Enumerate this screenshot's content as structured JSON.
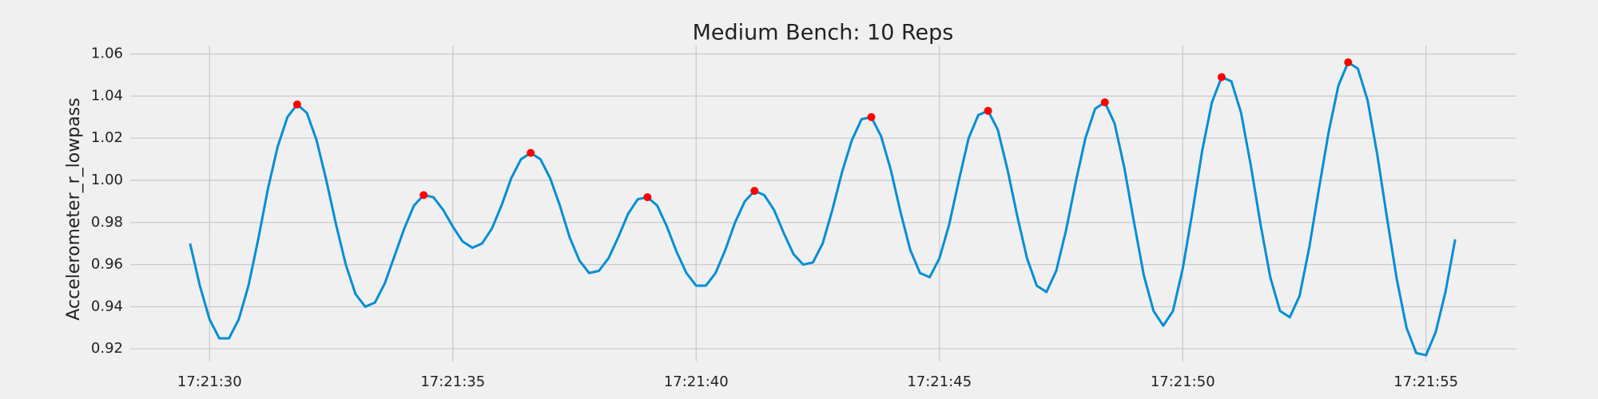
{
  "chart_data": {
    "type": "line",
    "title": "Medium Bench: 10 Reps",
    "ylabel": "Accelerometer_r_lowpass",
    "x": [
      29.6,
      29.8,
      30.0,
      30.2,
      30.4,
      30.6,
      30.8,
      31.0,
      31.2,
      31.4,
      31.6,
      31.8,
      32.0,
      32.2,
      32.4,
      32.6,
      32.8,
      33.0,
      33.2,
      33.4,
      33.6,
      33.8,
      34.0,
      34.2,
      34.4,
      34.6,
      34.8,
      35.0,
      35.2,
      35.4,
      35.6,
      35.8,
      36.0,
      36.2,
      36.4,
      36.6,
      36.8,
      37.0,
      37.2,
      37.4,
      37.6,
      37.8,
      38.0,
      38.2,
      38.4,
      38.6,
      38.8,
      39.0,
      39.2,
      39.4,
      39.6,
      39.8,
      40.0,
      40.2,
      40.4,
      40.6,
      40.8,
      41.0,
      41.2,
      41.4,
      41.6,
      41.8,
      42.0,
      42.2,
      42.4,
      42.6,
      42.8,
      43.0,
      43.2,
      43.4,
      43.6,
      43.8,
      44.0,
      44.2,
      44.4,
      44.6,
      44.8,
      45.0,
      45.2,
      45.4,
      45.6,
      45.8,
      46.0,
      46.2,
      46.4,
      46.6,
      46.8,
      47.0,
      47.2,
      47.4,
      47.6,
      47.8,
      48.0,
      48.2,
      48.4,
      48.6,
      48.8,
      49.0,
      49.2,
      49.4,
      49.6,
      49.8,
      50.0,
      50.2,
      50.4,
      50.6,
      50.8,
      51.0,
      51.2,
      51.4,
      51.6,
      51.8,
      52.0,
      52.2,
      52.4,
      52.6,
      52.8,
      53.0,
      53.2,
      53.4,
      53.6,
      53.8,
      54.0,
      54.2,
      54.4,
      54.6,
      54.8,
      55.0,
      55.2,
      55.4,
      55.6
    ],
    "series": [
      {
        "color": "#008fd5",
        "values": [
          0.97,
          0.95,
          0.934,
          0.925,
          0.925,
          0.934,
          0.95,
          0.972,
          0.996,
          1.016,
          1.03,
          1.036,
          1.032,
          1.019,
          1.0,
          0.979,
          0.96,
          0.946,
          0.94,
          0.942,
          0.951,
          0.964,
          0.977,
          0.988,
          0.993,
          0.992,
          0.986,
          0.978,
          0.971,
          0.968,
          0.97,
          0.977,
          0.988,
          1.001,
          1.01,
          1.013,
          1.01,
          1.001,
          0.988,
          0.973,
          0.962,
          0.956,
          0.957,
          0.963,
          0.973,
          0.984,
          0.991,
          0.992,
          0.988,
          0.978,
          0.966,
          0.956,
          0.95,
          0.95,
          0.956,
          0.967,
          0.98,
          0.99,
          0.995,
          0.993,
          0.986,
          0.975,
          0.965,
          0.96,
          0.961,
          0.97,
          0.986,
          1.004,
          1.019,
          1.029,
          1.03,
          1.021,
          1.005,
          0.985,
          0.967,
          0.956,
          0.954,
          0.963,
          0.979,
          1.0,
          1.02,
          1.031,
          1.033,
          1.024,
          1.005,
          0.983,
          0.963,
          0.95,
          0.947,
          0.957,
          0.976,
          0.999,
          1.02,
          1.034,
          1.037,
          1.027,
          1.006,
          0.98,
          0.955,
          0.938,
          0.931,
          0.938,
          0.958,
          0.985,
          1.014,
          1.037,
          1.049,
          1.047,
          1.032,
          1.007,
          0.979,
          0.954,
          0.938,
          0.935,
          0.945,
          0.968,
          0.996,
          1.023,
          1.045,
          1.056,
          1.053,
          1.038,
          1.012,
          0.982,
          0.953,
          0.93,
          0.918,
          0.917,
          0.928,
          0.947,
          0.972
        ]
      }
    ],
    "peaks": {
      "color": "#ff0000",
      "x": [
        31.8,
        34.4,
        36.6,
        39.0,
        41.2,
        43.6,
        46.0,
        48.4,
        50.8,
        53.4
      ],
      "values": [
        1.036,
        0.993,
        1.013,
        0.992,
        0.995,
        1.03,
        1.033,
        1.037,
        1.049,
        1.056
      ]
    },
    "xlim": [
      28.37,
      56.86
    ],
    "xticks": [
      {
        "value": 30,
        "label": "17:21:30"
      },
      {
        "value": 35,
        "label": "17:21:35"
      },
      {
        "value": 40,
        "label": "17:21:40"
      },
      {
        "value": 45,
        "label": "17:21:45"
      },
      {
        "value": 50,
        "label": "17:21:50"
      },
      {
        "value": 55,
        "label": "17:21:55"
      }
    ],
    "ylim": [
      0.914,
      1.064
    ],
    "yticks": [
      {
        "value": 0.92,
        "label": "0.92"
      },
      {
        "value": 0.94,
        "label": "0.94"
      },
      {
        "value": 0.96,
        "label": "0.96"
      },
      {
        "value": 0.98,
        "label": "0.98"
      },
      {
        "value": 1.0,
        "label": "1.00"
      },
      {
        "value": 1.02,
        "label": "1.02"
      },
      {
        "value": 1.04,
        "label": "1.04"
      },
      {
        "value": 1.06,
        "label": "1.06"
      }
    ],
    "grid": true
  }
}
